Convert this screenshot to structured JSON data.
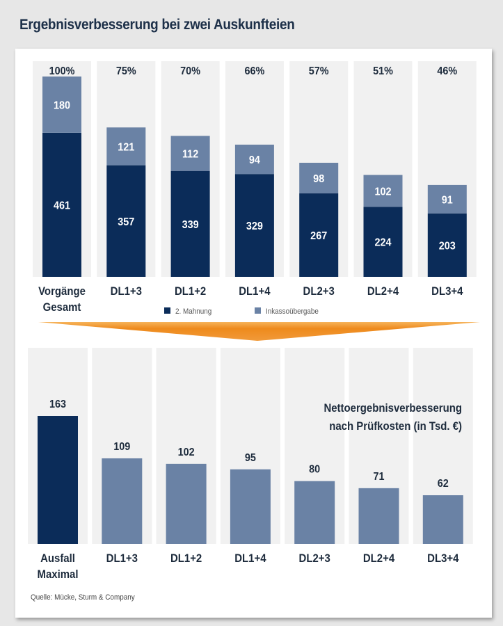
{
  "title": "Ergebnisverbesserung bei zwei Auskunfteien",
  "source": "Quelle: Mücke, Sturm & Company",
  "colors": {
    "dark": "#0b2c59",
    "light": "#6a82a5",
    "column_bg": "#f1f1f1",
    "arrow": "#ee8a1c",
    "text": "#1d2b3c",
    "bar_text": "#ffffff"
  },
  "chart_data": [
    {
      "type": "bar",
      "stacked": true,
      "title": "",
      "categories": [
        "Vorgänge Gesamt",
        "DL1+3",
        "DL1+2",
        "DL1+4",
        "DL2+3",
        "DL2+4",
        "DL3+4"
      ],
      "category_lines": [
        [
          "Vorgänge",
          "Gesamt"
        ],
        [
          "DL1+3"
        ],
        [
          "DL1+2"
        ],
        [
          "DL1+4"
        ],
        [
          "DL2+3"
        ],
        [
          "DL2+4"
        ],
        [
          "DL3+4"
        ]
      ],
      "series": [
        {
          "name": "2. Mahnung",
          "values": [
            461,
            357,
            339,
            329,
            267,
            224,
            203
          ]
        },
        {
          "name": "Inkassoübergabe",
          "values": [
            180,
            121,
            112,
            94,
            98,
            102,
            91
          ]
        }
      ],
      "top_labels": [
        "100%",
        "75%",
        "70%",
        "66%",
        "57%",
        "51%",
        "46%"
      ],
      "legend": [
        "2. Mahnung",
        "Inkassoübergabe"
      ],
      "legend_position": "bottom",
      "grid": false,
      "ylim": [
        0,
        641
      ]
    },
    {
      "type": "bar",
      "title": "Nettoergebnisverbesserung nach Prüfkosten (in Tsd. €)",
      "title_lines": [
        "Nettoergebnisverbesserung",
        "nach Prüfkosten (in Tsd. €)"
      ],
      "categories": [
        "Ausfall Maximal",
        "DL1+3",
        "DL1+2",
        "DL1+4",
        "DL2+3",
        "DL2+4",
        "DL3+4"
      ],
      "category_lines": [
        [
          "Ausfall",
          "Maximal"
        ],
        [
          "DL1+3"
        ],
        [
          "DL1+2"
        ],
        [
          "DL1+4"
        ],
        [
          "DL2+3"
        ],
        [
          "DL2+4"
        ],
        [
          "DL3+4"
        ]
      ],
      "values": [
        163,
        109,
        102,
        95,
        80,
        71,
        62
      ],
      "highlight_index": 0,
      "grid": false,
      "ylim": [
        0,
        163
      ]
    }
  ]
}
